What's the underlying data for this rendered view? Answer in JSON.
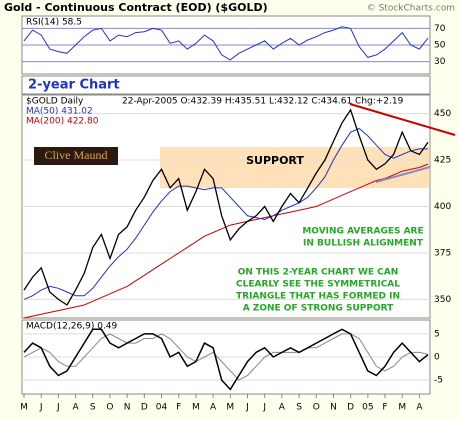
{
  "chart_data": {
    "type": "line",
    "title": "Gold - Continuous Contract (EOD) ($GOLD)",
    "source": "© StockCharts.com",
    "panel_caption": "2-year Chart",
    "price_header": "$GOLD Daily",
    "quote": "22-Apr-2005 O:432.39 H:435.51 L:432.12 C:434.61 Chg:+2.19",
    "ma50_label": "MA(50) 431.02",
    "ma200_label": "MA(200) 422.80",
    "author": "Clive Maund",
    "annotations": [
      "SUPPORT",
      "MOVING AVERAGES ARE",
      "IN BULLISH ALIGNMENT",
      "ON THIS 2-YEAR CHART WE CAN",
      "CLEARLY SEE THE SYMMETRICAL",
      "TRIANGLE THAT HAS FORMED IN",
      "A ZONE OF STRONG SUPPORT"
    ],
    "categories": [
      "M",
      null,
      "J",
      null,
      "J",
      null,
      "A",
      null,
      "S",
      null,
      "O",
      null,
      "N",
      null,
      "D",
      null,
      "04",
      null,
      "F",
      null,
      "M",
      null,
      "A",
      null,
      "M",
      null,
      "J",
      null,
      "J",
      null,
      "A",
      null,
      "S",
      null,
      "O",
      null,
      "N",
      null,
      "D",
      null,
      "05",
      null,
      "F",
      null,
      "M",
      null,
      "A",
      null
    ],
    "ylim": [
      340,
      460
    ],
    "yticks": [
      350,
      375,
      400,
      425,
      450
    ],
    "series": [
      {
        "name": "$GOLD",
        "color": "#000000",
        "values": [
          355,
          362,
          367,
          354,
          350,
          347,
          355,
          364,
          378,
          385,
          372,
          385,
          389,
          398,
          405,
          414,
          420,
          410,
          415,
          398,
          408,
          420,
          415,
          395,
          382,
          388,
          392,
          395,
          400,
          392,
          400,
          407,
          402,
          410,
          418,
          425,
          435,
          445,
          452,
          438,
          425,
          420,
          423,
          428,
          440,
          430,
          428,
          434.61
        ]
      },
      {
        "name": "MA(50)",
        "color": "#2233cc",
        "values": [
          350,
          352,
          355,
          357,
          356,
          354,
          352,
          352,
          356,
          362,
          368,
          373,
          377,
          383,
          390,
          397,
          403,
          408,
          411,
          411,
          410,
          409,
          410,
          410,
          405,
          400,
          395,
          394,
          393,
          395,
          398,
          400,
          402,
          405,
          410,
          416,
          425,
          433,
          440,
          442,
          438,
          433,
          428,
          426,
          428,
          430,
          431,
          431.02
        ]
      },
      {
        "name": "MA(200)",
        "color": "#cc0000",
        "values": [
          340,
          341,
          342,
          343,
          344,
          345,
          346,
          347,
          349,
          351,
          353,
          355,
          357,
          360,
          363,
          366,
          369,
          372,
          375,
          378,
          381,
          384,
          386,
          388,
          390,
          391,
          392,
          393,
          394,
          395,
          396,
          397,
          398,
          399,
          400,
          402,
          404,
          406,
          408,
          410,
          412,
          414,
          415,
          417,
          419,
          420,
          421,
          422.8
        ]
      }
    ],
    "rsi": {
      "label": "RSI(14) 58.5",
      "ylim": [
        15,
        85
      ],
      "yticks": [
        30,
        50,
        70
      ],
      "color": "#2233cc",
      "values": [
        55,
        68,
        62,
        45,
        42,
        40,
        50,
        60,
        68,
        70,
        55,
        62,
        60,
        65,
        66,
        70,
        68,
        52,
        55,
        45,
        52,
        62,
        55,
        38,
        32,
        40,
        45,
        50,
        55,
        45,
        52,
        58,
        50,
        56,
        60,
        65,
        68,
        72,
        70,
        48,
        35,
        38,
        45,
        55,
        65,
        50,
        45,
        58.5
      ]
    },
    "macd": {
      "label": "MACD(12,26,9) 0.49",
      "ylim": [
        -8,
        8
      ],
      "yticks": [
        5,
        0,
        -5
      ],
      "series": [
        {
          "name": "MACD",
          "color": "#000000",
          "values": [
            1,
            3,
            2,
            -2,
            -4,
            -3,
            0,
            3,
            6,
            6,
            3,
            2,
            3,
            4,
            5,
            5,
            4,
            0,
            1,
            -2,
            -1,
            3,
            2,
            -5,
            -7,
            -4,
            -1,
            1,
            2,
            0,
            1,
            2,
            1,
            2,
            3,
            4,
            5,
            6,
            5,
            1,
            -3,
            -4,
            -2,
            1,
            3,
            1,
            -1,
            0.49
          ]
        },
        {
          "name": "Signal",
          "color": "#888888",
          "values": [
            0,
            1,
            2,
            1,
            -1,
            -2,
            -2,
            0,
            2,
            4,
            5,
            4,
            3,
            3,
            4,
            4,
            5,
            4,
            2,
            0,
            -1,
            0,
            1,
            -1,
            -3,
            -5,
            -4,
            -2,
            0,
            1,
            1,
            1,
            1,
            2,
            2,
            3,
            4,
            5,
            5,
            4,
            1,
            -2,
            -3,
            -2,
            0,
            1,
            1,
            0.6
          ]
        }
      ]
    }
  }
}
